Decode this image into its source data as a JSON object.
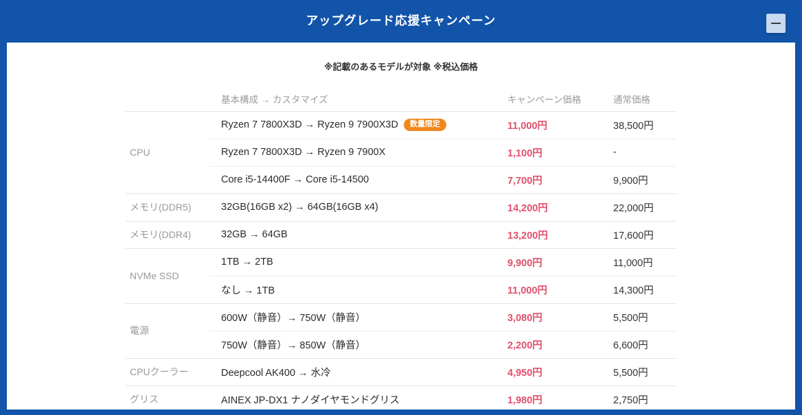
{
  "colors": {
    "header_bg": "#1254a9",
    "minimize_bg": "#c8daf0",
    "campaign_price": "#e0516b",
    "badge_bg": "#f0871e"
  },
  "app": {
    "title": "アップグレード応援キャンペーン"
  },
  "note": "※記載のあるモデルが対象 ※税込価格",
  "table": {
    "headers": {
      "category": "",
      "config": "基本構成 → カスタマイズ",
      "campaign": "キャンペーン価格",
      "normal": "通常価格"
    },
    "groups": [
      {
        "category": "CPU",
        "rows": [
          {
            "config": "Ryzen 7 7800X3D → Ryzen 9 7900X3D",
            "badge": "数量限定",
            "campaign": "11,000円",
            "normal": "38,500円"
          },
          {
            "config": "Ryzen 7 7800X3D → Ryzen 9 7900X",
            "campaign": "1,100円",
            "normal": "-"
          },
          {
            "config": "Core i5-14400F → Core i5-14500",
            "campaign": "7,700円",
            "normal": "9,900円"
          }
        ]
      },
      {
        "category": "メモリ(DDR5)",
        "rows": [
          {
            "config": "32GB(16GB x2) → 64GB(16GB x4)",
            "campaign": "14,200円",
            "normal": "22,000円"
          }
        ]
      },
      {
        "category": "メモリ(DDR4)",
        "rows": [
          {
            "config": "32GB → 64GB",
            "campaign": "13,200円",
            "normal": "17,600円"
          }
        ]
      },
      {
        "category": "NVMe SSD",
        "rows": [
          {
            "config": "1TB → 2TB",
            "campaign": "9,900円",
            "normal": "11,000円"
          },
          {
            "config": "なし → 1TB",
            "campaign": "11,000円",
            "normal": "14,300円"
          }
        ]
      },
      {
        "category": "電源",
        "rows": [
          {
            "config": "600W（静音）→ 750W（静音）",
            "campaign": "3,080円",
            "normal": "5,500円"
          },
          {
            "config": "750W（静音）→ 850W（静音）",
            "campaign": "2,200円",
            "normal": "6,600円"
          }
        ]
      },
      {
        "category": "CPUクーラー",
        "rows": [
          {
            "config": "Deepcool AK400 → 水冷",
            "campaign": "4,950円",
            "normal": "5,500円"
          }
        ]
      },
      {
        "category": "グリス",
        "rows": [
          {
            "config": "AINEX JP-DX1 ナノダイヤモンドグリス",
            "campaign": "1,980円",
            "normal": "2,750円"
          }
        ]
      }
    ]
  }
}
